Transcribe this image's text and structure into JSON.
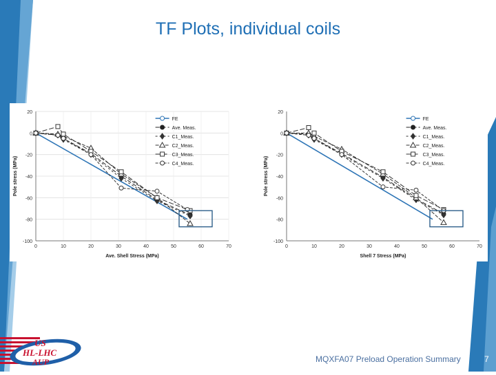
{
  "slide": {
    "title": "TF Plots, individual coils",
    "footer": "MQXFA07 Preload Operation Summary",
    "page_number": "7",
    "logo_text": [
      "US",
      "HL-LHC",
      "AUP"
    ]
  },
  "colors": {
    "title": "#1f6fb5",
    "fe_line": "#2e75b6",
    "highlight_box": "#2e5f8a",
    "band": "#2a7ab8"
  },
  "chart_data": [
    {
      "type": "line",
      "title": "",
      "xlabel": "Ave. Shell Stress (MPa)",
      "ylabel": "Pole stress (MPa)",
      "xlim": [
        0,
        70
      ],
      "ylim": [
        -100,
        20
      ],
      "xticks": [
        0,
        10,
        20,
        30,
        40,
        50,
        60,
        70
      ],
      "yticks": [
        20,
        0,
        -20,
        -40,
        -60,
        -80,
        -100
      ],
      "grid": true,
      "legend": "top-right",
      "series": [
        {
          "name": "FE",
          "color": "#2e75b6",
          "marker": "none",
          "dash": "solid",
          "x": [
            0,
            55
          ],
          "y": [
            0,
            -80
          ]
        },
        {
          "name": "Ave. Meas.",
          "color": "#222222",
          "marker": "filled-circle",
          "dash": "6,3",
          "x": [
            0,
            8,
            10,
            20,
            31,
            44,
            56
          ],
          "y": [
            0,
            -2,
            -5,
            -19,
            -40,
            -62,
            -76
          ]
        },
        {
          "name": "C1_Meas.",
          "color": "#333333",
          "marker": "diamond",
          "dash": "3,3",
          "x": [
            0,
            8,
            10,
            20,
            31,
            44,
            56
          ],
          "y": [
            0,
            -2,
            -6,
            -20,
            -42,
            -63,
            -77
          ]
        },
        {
          "name": "C2_Meas.",
          "color": "#333333",
          "marker": "triangle",
          "dash": "5,2",
          "x": [
            0,
            8,
            10,
            20,
            31,
            44,
            56
          ],
          "y": [
            0,
            -1,
            -3,
            -14,
            -38,
            -60,
            -84
          ]
        },
        {
          "name": "C3_Meas.",
          "color": "#333333",
          "marker": "square",
          "dash": "7,3",
          "x": [
            0,
            8,
            10,
            20,
            31,
            44,
            56
          ],
          "y": [
            0,
            6,
            -1,
            -17,
            -36,
            -60,
            -72
          ]
        },
        {
          "name": "C4_Meas.",
          "color": "#333333",
          "marker": "circle",
          "dash": "4,2",
          "x": [
            0,
            8,
            10,
            20,
            31,
            44,
            55
          ],
          "y": [
            0,
            -2,
            -5,
            -20,
            -51,
            -54,
            -71
          ]
        }
      ]
    },
    {
      "type": "line",
      "title": "",
      "xlabel": "Shell 7 Stress (MPa)",
      "ylabel": "Pole stress (MPa)",
      "xlim": [
        0,
        70
      ],
      "ylim": [
        -100,
        20
      ],
      "xticks": [
        0,
        10,
        20,
        30,
        40,
        50,
        60,
        70
      ],
      "yticks": [
        20,
        0,
        -20,
        -40,
        -60,
        -80,
        -100
      ],
      "grid": false,
      "legend": "top-right",
      "series": [
        {
          "name": "FE",
          "color": "#2e75b6",
          "marker": "none",
          "dash": "solid",
          "x": [
            0,
            53
          ],
          "y": [
            0,
            -80
          ]
        },
        {
          "name": "Ave. Meas.",
          "color": "#222222",
          "marker": "filled-circle",
          "dash": "6,3",
          "x": [
            0,
            8,
            10,
            20,
            35,
            47,
            57
          ],
          "y": [
            0,
            -1,
            -5,
            -19,
            -41,
            -61,
            -75
          ]
        },
        {
          "name": "C1_Meas.",
          "color": "#333333",
          "marker": "diamond",
          "dash": "3,3",
          "x": [
            0,
            8,
            10,
            20,
            35,
            47,
            57
          ],
          "y": [
            0,
            -2,
            -6,
            -20,
            -42,
            -62,
            -76
          ]
        },
        {
          "name": "C2_Meas.",
          "color": "#333333",
          "marker": "triangle",
          "dash": "5,2",
          "x": [
            0,
            8,
            10,
            20,
            35,
            47,
            57
          ],
          "y": [
            0,
            0,
            -3,
            -15,
            -38,
            -60,
            -83
          ]
        },
        {
          "name": "C3_Meas.",
          "color": "#333333",
          "marker": "square",
          "dash": "7,3",
          "x": [
            0,
            8,
            10,
            20,
            35,
            47,
            57
          ],
          "y": [
            0,
            5,
            0,
            -17,
            -36,
            -58,
            -71
          ]
        },
        {
          "name": "C4_Meas.",
          "color": "#333333",
          "marker": "circle",
          "dash": "4,2",
          "x": [
            0,
            8,
            10,
            20,
            35,
            47,
            57
          ],
          "y": [
            0,
            -2,
            -5,
            -20,
            -50,
            -53,
            -72
          ]
        }
      ]
    }
  ]
}
